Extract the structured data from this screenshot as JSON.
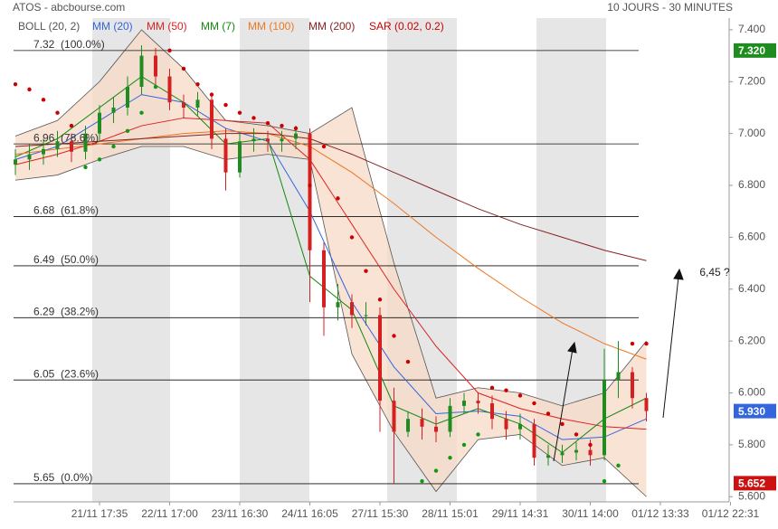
{
  "chart_data": {
    "type": "candlestick",
    "title": "ATOS - abcbourse.com",
    "subtitle": "10 JOURS - 30 MINUTES",
    "annotation": "6,45 ?",
    "xlim": [
      0,
      102
    ],
    "ylim": [
      5.58,
      7.445
    ],
    "xticks": [
      {
        "value": 12,
        "label": "21/11 17:35"
      },
      {
        "value": 22,
        "label": "22/11 17:00"
      },
      {
        "value": 32,
        "label": "23/11 16:30"
      },
      {
        "value": 42,
        "label": "24/11 16:05"
      },
      {
        "value": 52,
        "label": "27/11 15:30"
      },
      {
        "value": 62,
        "label": "28/11 15:01"
      },
      {
        "value": 72,
        "label": "29/11 14:31"
      },
      {
        "value": 82,
        "label": "30/11 14:00"
      },
      {
        "value": 92,
        "label": "01/12 13:33"
      },
      {
        "value": 102,
        "label": "01/12 22:31"
      }
    ],
    "yticks": [
      {
        "value": 5.6,
        "label": "5.600"
      },
      {
        "value": 5.8,
        "label": "5.800"
      },
      {
        "value": 6.0,
        "label": "6.000"
      },
      {
        "value": 6.2,
        "label": "6.200"
      },
      {
        "value": 6.4,
        "label": "6.400"
      },
      {
        "value": 6.6,
        "label": "6.600"
      },
      {
        "value": 6.8,
        "label": "6.800"
      },
      {
        "value": 7.0,
        "label": "7.000"
      },
      {
        "value": 7.2,
        "label": "7.200"
      },
      {
        "value": 7.4,
        "label": "7.400"
      }
    ],
    "up_color": "#1e8c1e",
    "down_color": "#d42020",
    "candles": {
      "x": [
        0,
        2,
        4,
        6,
        8,
        10,
        12,
        14,
        16,
        18,
        20,
        22,
        24,
        26,
        28,
        30,
        32,
        34,
        36,
        38,
        40,
        42,
        44,
        46,
        48,
        50,
        52,
        54,
        56,
        58,
        60,
        62,
        64,
        66,
        68,
        70,
        72,
        74,
        76,
        78,
        80,
        82,
        84,
        86,
        88,
        90
      ],
      "open": [
        6.88,
        6.9,
        6.92,
        6.94,
        6.97,
        6.93,
        7.0,
        7.08,
        7.1,
        7.18,
        7.3,
        7.22,
        7.12,
        7.1,
        7.13,
        6.98,
        6.85,
        6.97,
        6.98,
        6.97,
        6.98,
        7.0,
        6.55,
        6.33,
        6.35,
        6.3,
        6.3,
        5.97,
        5.85,
        5.9,
        5.87,
        5.85,
        5.95,
        5.97,
        5.96,
        5.9,
        5.86,
        5.88,
        5.75,
        5.76,
        5.77,
        5.78,
        5.76,
        6.05,
        6.08,
        5.98
      ],
      "high": [
        6.94,
        6.96,
        6.98,
        7.01,
        7.0,
        7.03,
        7.11,
        7.14,
        7.22,
        7.34,
        7.33,
        7.25,
        7.15,
        7.16,
        7.15,
        7.02,
        7.0,
        7.02,
        7.01,
        7.01,
        7.03,
        7.02,
        6.58,
        6.42,
        6.38,
        6.35,
        6.33,
        6.02,
        5.93,
        5.94,
        5.91,
        5.98,
        6.0,
        6.0,
        5.99,
        5.93,
        5.92,
        5.9,
        5.8,
        5.8,
        5.81,
        5.82,
        6.17,
        6.2,
        6.1,
        6.0
      ],
      "low": [
        6.84,
        6.86,
        6.88,
        6.91,
        6.89,
        6.9,
        6.97,
        7.04,
        7.07,
        7.15,
        7.18,
        7.09,
        7.06,
        7.07,
        6.94,
        6.78,
        6.83,
        6.93,
        6.93,
        6.93,
        6.94,
        6.35,
        6.22,
        6.28,
        6.25,
        6.26,
        5.85,
        5.65,
        5.83,
        5.82,
        5.81,
        5.83,
        5.92,
        5.92,
        5.86,
        5.82,
        5.82,
        5.72,
        5.72,
        5.73,
        5.74,
        5.72,
        5.74,
        5.98,
        5.94,
        5.89
      ],
      "close": [
        6.9,
        6.92,
        6.94,
        6.97,
        6.93,
        7.0,
        7.08,
        7.1,
        7.18,
        7.3,
        7.22,
        7.12,
        7.1,
        7.13,
        6.98,
        6.85,
        6.97,
        6.98,
        6.97,
        6.98,
        7.0,
        6.55,
        6.33,
        6.35,
        6.3,
        6.3,
        5.97,
        5.85,
        5.9,
        5.87,
        5.85,
        5.95,
        5.97,
        5.96,
        5.9,
        5.86,
        5.88,
        5.75,
        5.76,
        5.77,
        5.78,
        5.76,
        6.05,
        6.08,
        5.98,
        5.93
      ]
    },
    "ma_x": [
      0,
      6,
      12,
      18,
      24,
      30,
      36,
      42,
      48,
      54,
      60,
      66,
      72,
      78,
      84,
      90
    ],
    "bollinger": {
      "name": "BOLL (20, 2)",
      "color": "#555555",
      "fill": "#f7d9c6",
      "upper": [
        6.99,
        7.05,
        7.2,
        7.4,
        7.25,
        7.05,
        7.03,
        7.0,
        7.1,
        6.5,
        5.98,
        6.02,
        6.0,
        5.95,
        6.0,
        6.2
      ],
      "lower": [
        6.82,
        6.84,
        6.9,
        6.95,
        6.95,
        6.9,
        6.92,
        6.9,
        6.15,
        5.85,
        5.62,
        5.82,
        5.84,
        5.72,
        5.75,
        5.6
      ]
    },
    "series": [
      {
        "name": "MM (20)",
        "color": "#3366dd",
        "values": [
          6.9,
          6.95,
          7.05,
          7.15,
          7.12,
          7.02,
          6.97,
          6.7,
          6.35,
          6.1,
          5.92,
          5.93,
          5.91,
          5.82,
          5.83,
          5.9
        ]
      },
      {
        "name": "MM (50)",
        "color": "#dd2222",
        "values": [
          6.88,
          6.92,
          6.97,
          7.03,
          7.06,
          7.05,
          7.04,
          6.9,
          6.65,
          6.4,
          6.18,
          6.0,
          5.94,
          5.9,
          5.87,
          5.86
        ]
      },
      {
        "name": "MM (7)",
        "color": "#118811",
        "values": [
          6.91,
          6.98,
          7.1,
          7.22,
          7.12,
          6.96,
          6.98,
          6.45,
          6.32,
          5.95,
          5.88,
          5.94,
          5.88,
          5.77,
          5.9,
          5.98
        ]
      },
      {
        "name": "MM (100)",
        "color": "#ee7722",
        "values": [
          6.92,
          6.94,
          6.96,
          6.98,
          7.0,
          7.01,
          7.0,
          6.95,
          6.85,
          6.73,
          6.6,
          6.48,
          6.37,
          6.27,
          6.19,
          6.13
        ]
      },
      {
        "name": "MM (200)",
        "color": "#882222",
        "values": [
          6.95,
          6.96,
          6.97,
          6.98,
          6.99,
          7.0,
          7.0,
          6.98,
          6.92,
          6.85,
          6.78,
          6.71,
          6.65,
          6.6,
          6.55,
          6.51
        ]
      }
    ],
    "sar": {
      "name": "SAR (0.02, 0.2)",
      "color": "#cc0000",
      "below_color": "#119911",
      "values": [
        7.19,
        7.17,
        7.13,
        7.08,
        7.03,
        6.87,
        6.9,
        6.95,
        7.01,
        7.08,
        7.18,
        7.32,
        7.25,
        7.19,
        7.15,
        7.11,
        7.08,
        7.06,
        7.04,
        7.03,
        7.02,
        6.8,
        6.95,
        6.75,
        6.6,
        6.47,
        6.36,
        6.22,
        6.12,
        5.66,
        5.7,
        5.75,
        5.8,
        5.84,
        6.02,
        6.01,
        5.99,
        5.96,
        5.92,
        5.88,
        5.84,
        5.8,
        5.66,
        5.72,
        6.19,
        6.19
      ]
    },
    "fib_levels": [
      {
        "value": 7.32,
        "label": "7.32  (100.0%)"
      },
      {
        "value": 6.96,
        "label": "6.96  (78.6%)"
      },
      {
        "value": 6.68,
        "label": "6.68  (61.8%)"
      },
      {
        "value": 6.49,
        "label": "6.49  (50.0%)"
      },
      {
        "value": 6.29,
        "label": "6.29  (38.2%)"
      },
      {
        "value": 6.05,
        "label": "6.05  (23.6%)"
      },
      {
        "value": 5.65,
        "label": "5.65  (0.0%)"
      }
    ],
    "price_badges": [
      {
        "value": 7.32,
        "label": "7.320",
        "color": "#1e8c1e"
      },
      {
        "value": 5.93,
        "label": "5.930",
        "color": "#3366dd"
      },
      {
        "value": 5.652,
        "label": "5.652",
        "color": "#cc1111"
      }
    ]
  }
}
